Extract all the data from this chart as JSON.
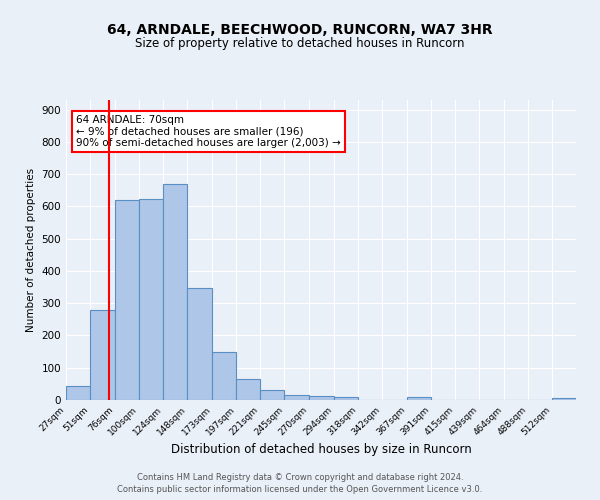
{
  "title": "64, ARNDALE, BEECHWOOD, RUNCORN, WA7 3HR",
  "subtitle": "Size of property relative to detached houses in Runcorn",
  "xlabel": "Distribution of detached houses by size in Runcorn",
  "ylabel": "Number of detached properties",
  "footer_line1": "Contains HM Land Registry data © Crown copyright and database right 2024.",
  "footer_line2": "Contains public sector information licensed under the Open Government Licence v3.0.",
  "bin_labels": [
    "27sqm",
    "51sqm",
    "76sqm",
    "100sqm",
    "124sqm",
    "148sqm",
    "173sqm",
    "197sqm",
    "221sqm",
    "245sqm",
    "270sqm",
    "294sqm",
    "318sqm",
    "342sqm",
    "367sqm",
    "391sqm",
    "415sqm",
    "439sqm",
    "464sqm",
    "488sqm",
    "512sqm"
  ],
  "bar_values": [
    42,
    280,
    620,
    622,
    670,
    348,
    148,
    65,
    30,
    15,
    11,
    10,
    0,
    0,
    10,
    0,
    0,
    0,
    0,
    0,
    5
  ],
  "bin_edges": [
    27,
    51,
    76,
    100,
    124,
    148,
    173,
    197,
    221,
    245,
    270,
    294,
    318,
    342,
    367,
    391,
    415,
    439,
    464,
    488,
    512,
    536
  ],
  "bin_tick_positions": [
    27,
    51,
    76,
    100,
    124,
    148,
    173,
    197,
    221,
    245,
    270,
    294,
    318,
    342,
    367,
    391,
    415,
    439,
    464,
    488,
    512
  ],
  "property_size": 70,
  "annotation_text_line1": "64 ARNDALE: 70sqm",
  "annotation_text_line2": "← 9% of detached houses are smaller (196)",
  "annotation_text_line3": "90% of semi-detached houses are larger (2,003) →",
  "vline_x": 70,
  "bar_color": "#aec6e8",
  "bar_edge_color": "#5a8fc4",
  "vline_color": "red",
  "background_color": "#eaf0f8",
  "annotation_box_color": "white",
  "annotation_box_edge": "red",
  "ylim": [
    0,
    930
  ],
  "yticks": [
    0,
    100,
    200,
    300,
    400,
    500,
    600,
    700,
    800,
    900
  ]
}
